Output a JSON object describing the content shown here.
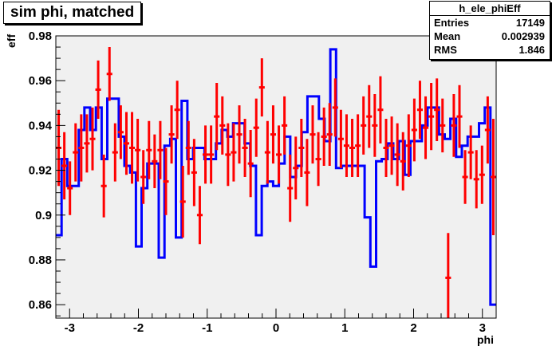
{
  "stats": {
    "name": "h_ele_phiEff",
    "rows": [
      {
        "label": "Entries",
        "value": "17149"
      },
      {
        "label": "Mean",
        "value": "0.002939"
      },
      {
        "label": "RMS",
        "value": "1.846"
      }
    ]
  },
  "colors": {
    "frame_fill": "#f0f0f0",
    "histogram": "#0000ff",
    "points": "#ff0000",
    "axis": "#000000"
  },
  "chart_data": {
    "type": "line",
    "title": "sim phi, matched",
    "xlabel": "phi",
    "ylabel": "eff",
    "xlim": [
      -3.2,
      3.2
    ],
    "ylim": [
      0.854,
      0.98
    ],
    "x_tick_labels": [
      "-3",
      "-2",
      "-1",
      "0",
      "1",
      "2",
      "3"
    ],
    "y_tick_labels": [
      "0.86",
      "0.88",
      "0.9",
      "0.92",
      "0.94",
      "0.96",
      "0.98"
    ],
    "grid": false,
    "series": [
      {
        "style": "histogram",
        "color": "#0000ff",
        "values": [
          0.891,
          0.925,
          0.913,
          0.913,
          0.938,
          0.948,
          0.938,
          0.948,
          0.925,
          0.952,
          0.952,
          0.935,
          0.922,
          0.919,
          0.886,
          0.912,
          0.923,
          0.923,
          0.881,
          0.931,
          0.934,
          0.89,
          0.951,
          0.925,
          0.93,
          0.93,
          0.925,
          0.925,
          0.932,
          0.938,
          0.935,
          0.941,
          0.941,
          0.932,
          0.922,
          0.891,
          0.913,
          0.915,
          0.913,
          0.923,
          0.935,
          0.917,
          0.922,
          0.937,
          0.953,
          0.953,
          0.943,
          0.933,
          0.974,
          0.921,
          0.922,
          0.922,
          0.922,
          0.922,
          0.899,
          0.877,
          0.924,
          0.925,
          0.932,
          0.925,
          0.933,
          0.918,
          0.933,
          0.933,
          0.94,
          0.948,
          0.948,
          0.936,
          0.934,
          0.943,
          0.926,
          0.931,
          0.935,
          0.935,
          0.941,
          0.948,
          0.86
        ]
      },
      {
        "style": "points",
        "color": "#ff0000",
        "values": [
          0.93,
          0.922,
          0.912,
          0.928,
          0.93,
          0.932,
          0.934,
          0.956,
          0.913,
          0.963,
          0.928,
          0.937,
          0.932,
          0.93,
          0.929,
          0.917,
          0.929,
          0.924,
          0.929,
          0.915,
          0.936,
          0.947,
          0.906,
          0.93,
          0.919,
          0.9,
          0.927,
          0.927,
          0.944,
          0.94,
          0.927,
          0.928,
          0.936,
          0.93,
          0.923,
          0.939,
          0.957,
          0.928,
          0.936,
          0.927,
          0.94,
          0.912,
          0.921,
          0.93,
          0.919,
          0.936,
          0.925,
          0.935,
          0.936,
          0.948,
          0.934,
          0.931,
          0.93,
          0.931,
          0.94,
          0.944,
          0.94,
          0.947,
          0.93,
          0.931,
          0.927,
          0.924,
          0.931,
          0.938,
          0.947,
          0.939,
          0.944,
          0.947,
          0.94,
          0.872,
          0.94,
          0.944,
          0.917,
          0.928,
          0.916,
          0.918,
          0.938,
          0.917
        ],
        "errors": [
          0.017,
          0.015,
          0.012,
          0.013,
          0.015,
          0.013,
          0.014,
          0.013,
          0.014,
          0.012,
          0.013,
          0.012,
          0.014,
          0.016,
          0.014,
          0.012,
          0.013,
          0.012,
          0.013,
          0.015,
          0.013,
          0.013,
          0.016,
          0.012,
          0.015,
          0.013,
          0.013,
          0.013,
          0.015,
          0.013,
          0.014,
          0.013,
          0.013,
          0.013,
          0.015,
          0.013,
          0.013,
          0.014,
          0.013,
          0.013,
          0.013,
          0.015,
          0.014,
          0.013,
          0.015,
          0.013,
          0.012,
          0.013,
          0.014,
          0.013,
          0.013,
          0.014,
          0.013,
          0.014,
          0.013,
          0.014,
          0.014,
          0.015,
          0.013,
          0.013,
          0.014,
          0.013,
          0.014,
          0.014,
          0.013,
          0.014,
          0.015,
          0.014,
          0.012,
          0.02,
          0.014,
          0.014,
          0.012,
          0.012,
          0.013,
          0.013,
          0.015,
          0.026
        ]
      }
    ]
  }
}
